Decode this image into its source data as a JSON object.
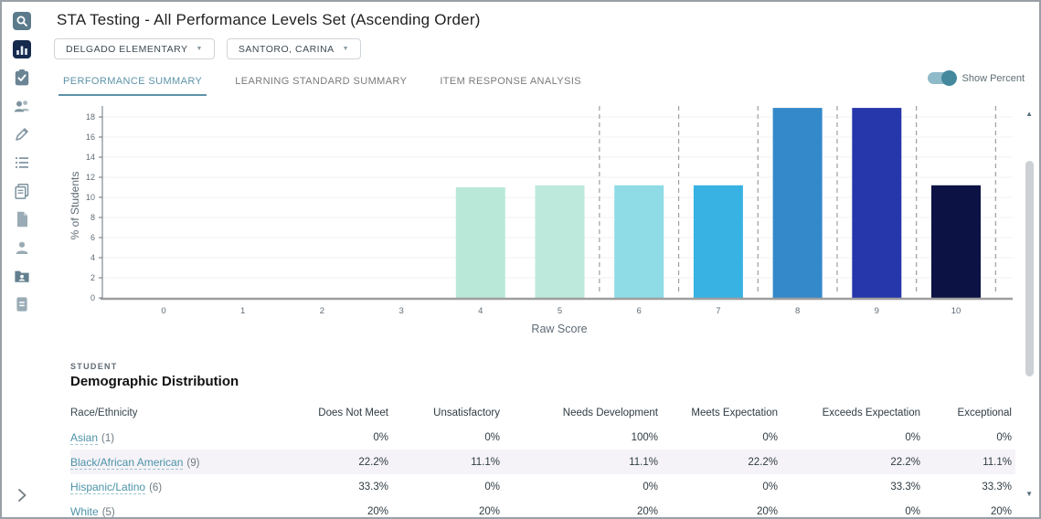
{
  "header": {
    "title": "STA Testing - All Performance Levels Set (Ascending Order)",
    "filters": [
      {
        "label": "DELGADO ELEMENTARY"
      },
      {
        "label": "SANTORO, CARINA"
      }
    ]
  },
  "tabs": [
    {
      "label": "PERFORMANCE SUMMARY",
      "active": true
    },
    {
      "label": "LEARNING STANDARD SUMMARY",
      "active": false
    },
    {
      "label": "ITEM RESPONSE ANALYSIS",
      "active": false
    }
  ],
  "toggle": {
    "label": "Show Percent",
    "state": "on",
    "track_color": "#8fbac9",
    "knob_color": "#44889e"
  },
  "sidebar": {
    "items": [
      "search",
      "reports",
      "assessments",
      "students",
      "edit",
      "list",
      "pages",
      "file",
      "person",
      "folder-user",
      "document"
    ],
    "active_item": "reports"
  },
  "chart_data": {
    "type": "bar",
    "title": "",
    "xlabel": "Raw Score",
    "ylabel": "% of Students",
    "categories": [
      "0",
      "1",
      "2",
      "3",
      "4",
      "5",
      "6",
      "7",
      "8",
      "9",
      "10"
    ],
    "values": [
      0,
      0,
      0,
      0,
      11.0,
      11.2,
      11.2,
      11.2,
      18.9,
      18.9,
      11.2
    ],
    "bar_colors": [
      "#b9e8d9",
      "#b9e8d9",
      "#b9e8d9",
      "#b9e8d9",
      "#b9e8d9",
      "#bce9db",
      "#8fdce6",
      "#38b2e3",
      "#3389c9",
      "#2636ab",
      "#0c1244"
    ],
    "ylim": [
      0,
      18.9
    ],
    "yticks": [
      0,
      2,
      4,
      6,
      8,
      10,
      12,
      14,
      16,
      18
    ],
    "level_separators": [
      5.5,
      6.5,
      7.5,
      8.5,
      9.5,
      10.5
    ],
    "grid": "faint horizontal gridlines at y ticks",
    "legend": "none",
    "axis_color": "#9e9e9e",
    "tick_color": "#5f6b76"
  },
  "demographics": {
    "eyebrow": "STUDENT",
    "title": "Demographic Distribution",
    "columns": [
      "Race/Ethnicity",
      "Does Not Meet",
      "Unsatisfactory",
      "Needs Development",
      "Meets Expectation",
      "Exceeds Expectation",
      "Exceptional"
    ],
    "rows": [
      {
        "race": "Asian",
        "count": "(1)",
        "values": [
          "0%",
          "0%",
          "100%",
          "0%",
          "0%",
          "0%"
        ],
        "highlight": false
      },
      {
        "race": "Black/African American",
        "count": "(9)",
        "values": [
          "22.2%",
          "11.1%",
          "11.1%",
          "22.2%",
          "22.2%",
          "11.1%"
        ],
        "highlight": true
      },
      {
        "race": "Hispanic/Latino",
        "count": "(6)",
        "values": [
          "33.3%",
          "0%",
          "0%",
          "0%",
          "33.3%",
          "33.3%"
        ],
        "highlight": false
      },
      {
        "race": "White",
        "count": "(5)",
        "values": [
          "20%",
          "20%",
          "20%",
          "20%",
          "0%",
          "20%"
        ],
        "highlight": false
      }
    ]
  },
  "scrollbar": {
    "up_glyph": "▲",
    "down_glyph": "▼"
  }
}
